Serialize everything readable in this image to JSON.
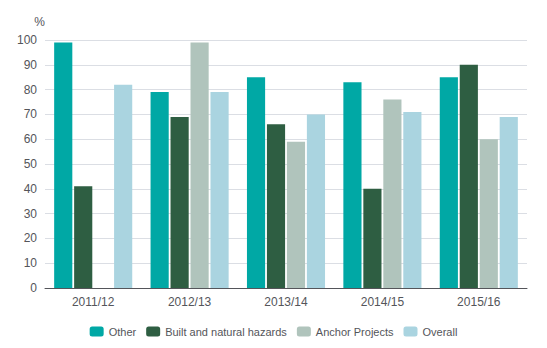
{
  "chart_data": {
    "type": "bar",
    "categories": [
      "2011/12",
      "2012/13",
      "2013/14",
      "2014/15",
      "2015/16"
    ],
    "series": [
      {
        "name": "Other",
        "color": "#00a8a5",
        "values": [
          99,
          79,
          85,
          83,
          85
        ]
      },
      {
        "name": "Built and natural hazards",
        "color": "#2e5e42",
        "values": [
          41,
          69,
          66,
          40,
          90
        ]
      },
      {
        "name": "Anchor Projects",
        "color": "#b0c4bc",
        "values": [
          null,
          99,
          59,
          76,
          60
        ]
      },
      {
        "name": "Overall",
        "color": "#aad4e0",
        "values": [
          82,
          79,
          70,
          71,
          69
        ]
      }
    ],
    "ylabel": "%",
    "ylim": [
      0,
      100
    ],
    "yticks": [
      0,
      10,
      20,
      30,
      40,
      50,
      60,
      70,
      80,
      90,
      100
    ],
    "grid": true,
    "legend": "bottom"
  }
}
